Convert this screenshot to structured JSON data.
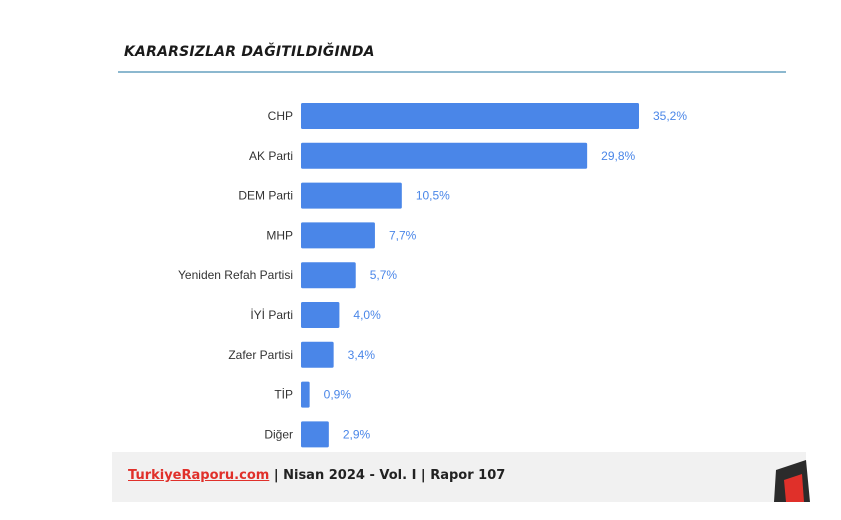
{
  "chart_data": {
    "type": "bar",
    "orientation": "horizontal",
    "title": "KARARSIZLAR DAĞITILDIĞINDA",
    "categories": [
      "CHP",
      "AK Parti",
      "DEM Parti",
      "MHP",
      "Yeniden Refah Partisi",
      "İYİ Parti",
      "Zafer Partisi",
      "TİP",
      "Diğer"
    ],
    "values": [
      35.2,
      29.8,
      10.5,
      7.7,
      5.7,
      4.0,
      3.4,
      0.9,
      2.9
    ],
    "value_labels": [
      "35,2%",
      "29,8%",
      "10,5%",
      "7,7%",
      "5,7%",
      "4,0%",
      "3,4%",
      "0,9%",
      "2,9%"
    ],
    "xlim": [
      0,
      35.2
    ],
    "grid": false,
    "bar_color": "#4a86e8",
    "label_color": "#4a86e8"
  },
  "footer": {
    "site": "TurkiyeRaporu.com",
    "details": " | Nisan 2024 - Vol. I | Rapor 107"
  },
  "colors": {
    "title_rule": "#8cb8cf",
    "footer_band": "#f1f1f1",
    "link": "#e0302a"
  }
}
